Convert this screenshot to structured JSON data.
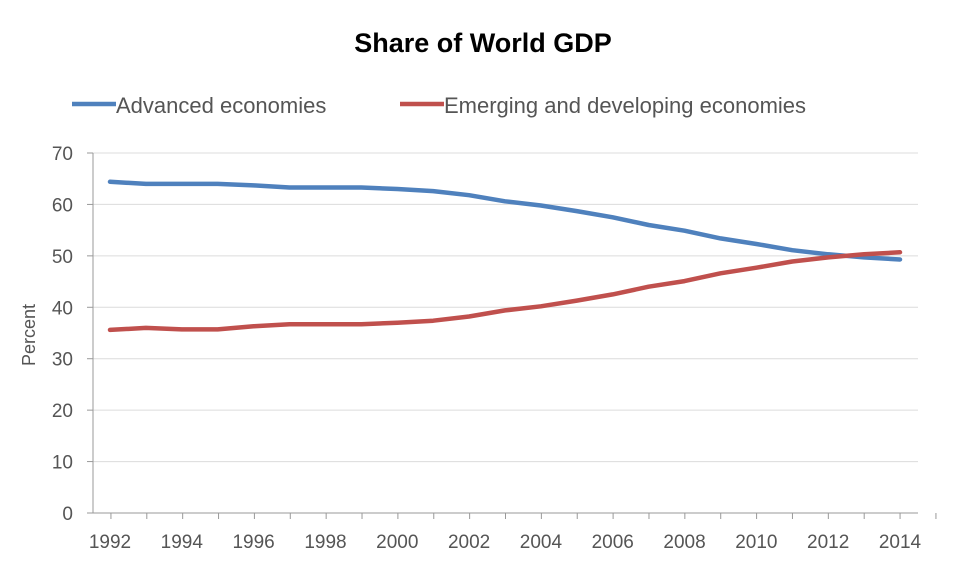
{
  "chart_data": {
    "type": "line",
    "title": "Share of World GDP",
    "xlabel": "",
    "ylabel": "Percent",
    "ylim": [
      0,
      70
    ],
    "yticks": [
      0,
      10,
      20,
      30,
      40,
      50,
      60,
      70
    ],
    "xticks": [
      "1992",
      "1994",
      "1996",
      "1998",
      "2000",
      "2002",
      "2004",
      "2006",
      "2008",
      "2010",
      "2012",
      "2014"
    ],
    "xlim": [
      1992,
      2014
    ],
    "grid": true,
    "legend": "top",
    "x": [
      1992,
      1993,
      1994,
      1995,
      1996,
      1997,
      1998,
      1999,
      2000,
      2001,
      2002,
      2003,
      2004,
      2005,
      2006,
      2007,
      2008,
      2009,
      2010,
      2011,
      2012,
      2013,
      2014
    ],
    "series": [
      {
        "name": "Advanced economies",
        "color": "#4f81bd",
        "values": [
          64.4,
          64.0,
          64.0,
          64.0,
          63.7,
          63.3,
          63.3,
          63.3,
          63.0,
          62.6,
          61.8,
          60.6,
          59.8,
          58.7,
          57.5,
          56.0,
          54.9,
          53.4,
          52.3,
          51.1,
          50.3,
          49.7,
          49.3
        ]
      },
      {
        "name": "Emerging and developing economies",
        "color": "#c0504d",
        "values": [
          35.6,
          36.0,
          35.7,
          35.7,
          36.3,
          36.7,
          36.7,
          36.7,
          37.0,
          37.4,
          38.2,
          39.4,
          40.2,
          41.3,
          42.5,
          44.0,
          45.1,
          46.6,
          47.7,
          48.9,
          49.7,
          50.3,
          50.7
        ]
      }
    ]
  }
}
